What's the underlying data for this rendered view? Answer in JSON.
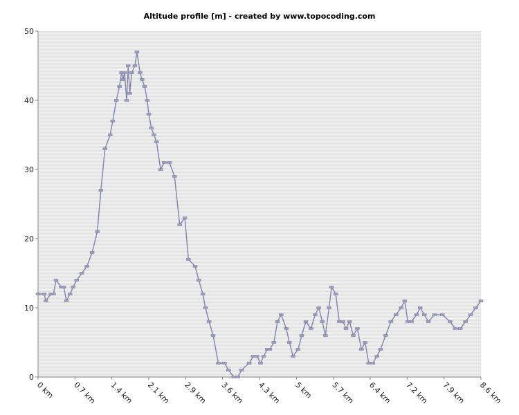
{
  "chart_data": {
    "type": "line",
    "title": "Altitude profile [m] - created by www.topocoding.com",
    "xlabel": "",
    "ylabel": "",
    "ylim": [
      0,
      50
    ],
    "xlim": [
      0,
      8.6
    ],
    "x_ticks": [
      "0 km",
      "0.7 km",
      "1.4 km",
      "2.1 km",
      "2.9 km",
      "3.6 km",
      "4.3 km",
      "5 km",
      "5.7 km",
      "6.4 km",
      "7.2 km",
      "7.9 km",
      "8.6 km"
    ],
    "y_ticks": [
      "0",
      "10",
      "20",
      "30",
      "40",
      "50"
    ],
    "grid": true,
    "legend": "none",
    "line_color": "#8888b0",
    "series": [
      {
        "x": [
          0,
          0.12,
          0.15,
          0.25,
          0.3,
          0.35,
          0.45,
          0.5,
          0.55,
          0.62,
          0.68,
          0.75,
          0.85,
          0.95,
          1.05,
          1.15,
          1.22,
          1.3,
          1.4,
          1.45,
          1.52,
          1.58,
          1.62,
          1.65,
          1.68,
          1.72,
          1.75,
          1.78,
          1.82,
          1.88,
          1.92,
          1.98,
          2.02,
          2.07,
          2.12,
          2.15,
          2.2,
          2.25,
          2.3,
          2.38,
          2.45,
          2.55,
          2.65,
          2.75,
          2.85,
          2.92,
          3.05,
          3.12,
          3.2,
          3.25,
          3.32,
          3.4,
          3.5,
          3.62,
          3.7,
          3.8,
          3.88,
          3.95,
          4.1,
          4.18,
          4.25,
          4.32,
          4.38,
          4.45,
          4.5,
          4.58,
          4.65,
          4.72,
          4.82,
          4.88,
          4.95,
          5.05,
          5.12,
          5.2,
          5.3,
          5.38,
          5.45,
          5.52,
          5.58,
          5.65,
          5.7,
          5.78,
          5.85,
          5.92,
          5.98,
          6.05,
          6.12,
          6.2,
          6.28,
          6.35,
          6.42,
          6.5,
          6.58,
          6.65,
          6.75,
          6.85,
          6.95,
          7.05,
          7.12,
          7.18,
          7.25,
          7.35,
          7.42,
          7.5,
          7.58,
          7.7,
          7.85,
          8.0,
          8.1,
          8.2,
          8.3,
          8.4,
          8.5,
          8.6
        ],
        "values": [
          12,
          12,
          11,
          12,
          12,
          14,
          13,
          13,
          11,
          12,
          13,
          14,
          15,
          16,
          18,
          21,
          27,
          33,
          35,
          37,
          40,
          42,
          44,
          43,
          44,
          40,
          45,
          41,
          44,
          45,
          47,
          44,
          43,
          42,
          40,
          38,
          36,
          35,
          34,
          30,
          31,
          31,
          29,
          22,
          23,
          17,
          16,
          14,
          12,
          10,
          8,
          6,
          2,
          2,
          1,
          0,
          0,
          1,
          2,
          3,
          3,
          2,
          3,
          4,
          4,
          5,
          8,
          9,
          7,
          5,
          3,
          4,
          6,
          8,
          7,
          9,
          10,
          8,
          6,
          10,
          13,
          12,
          8,
          8,
          7,
          8,
          6,
          7,
          4,
          5,
          2,
          2,
          3,
          4,
          6,
          8,
          9,
          10,
          11,
          8,
          8,
          9,
          10,
          9,
          8,
          9,
          9,
          8,
          7,
          7,
          8,
          9,
          10,
          11
        ]
      }
    ]
  }
}
